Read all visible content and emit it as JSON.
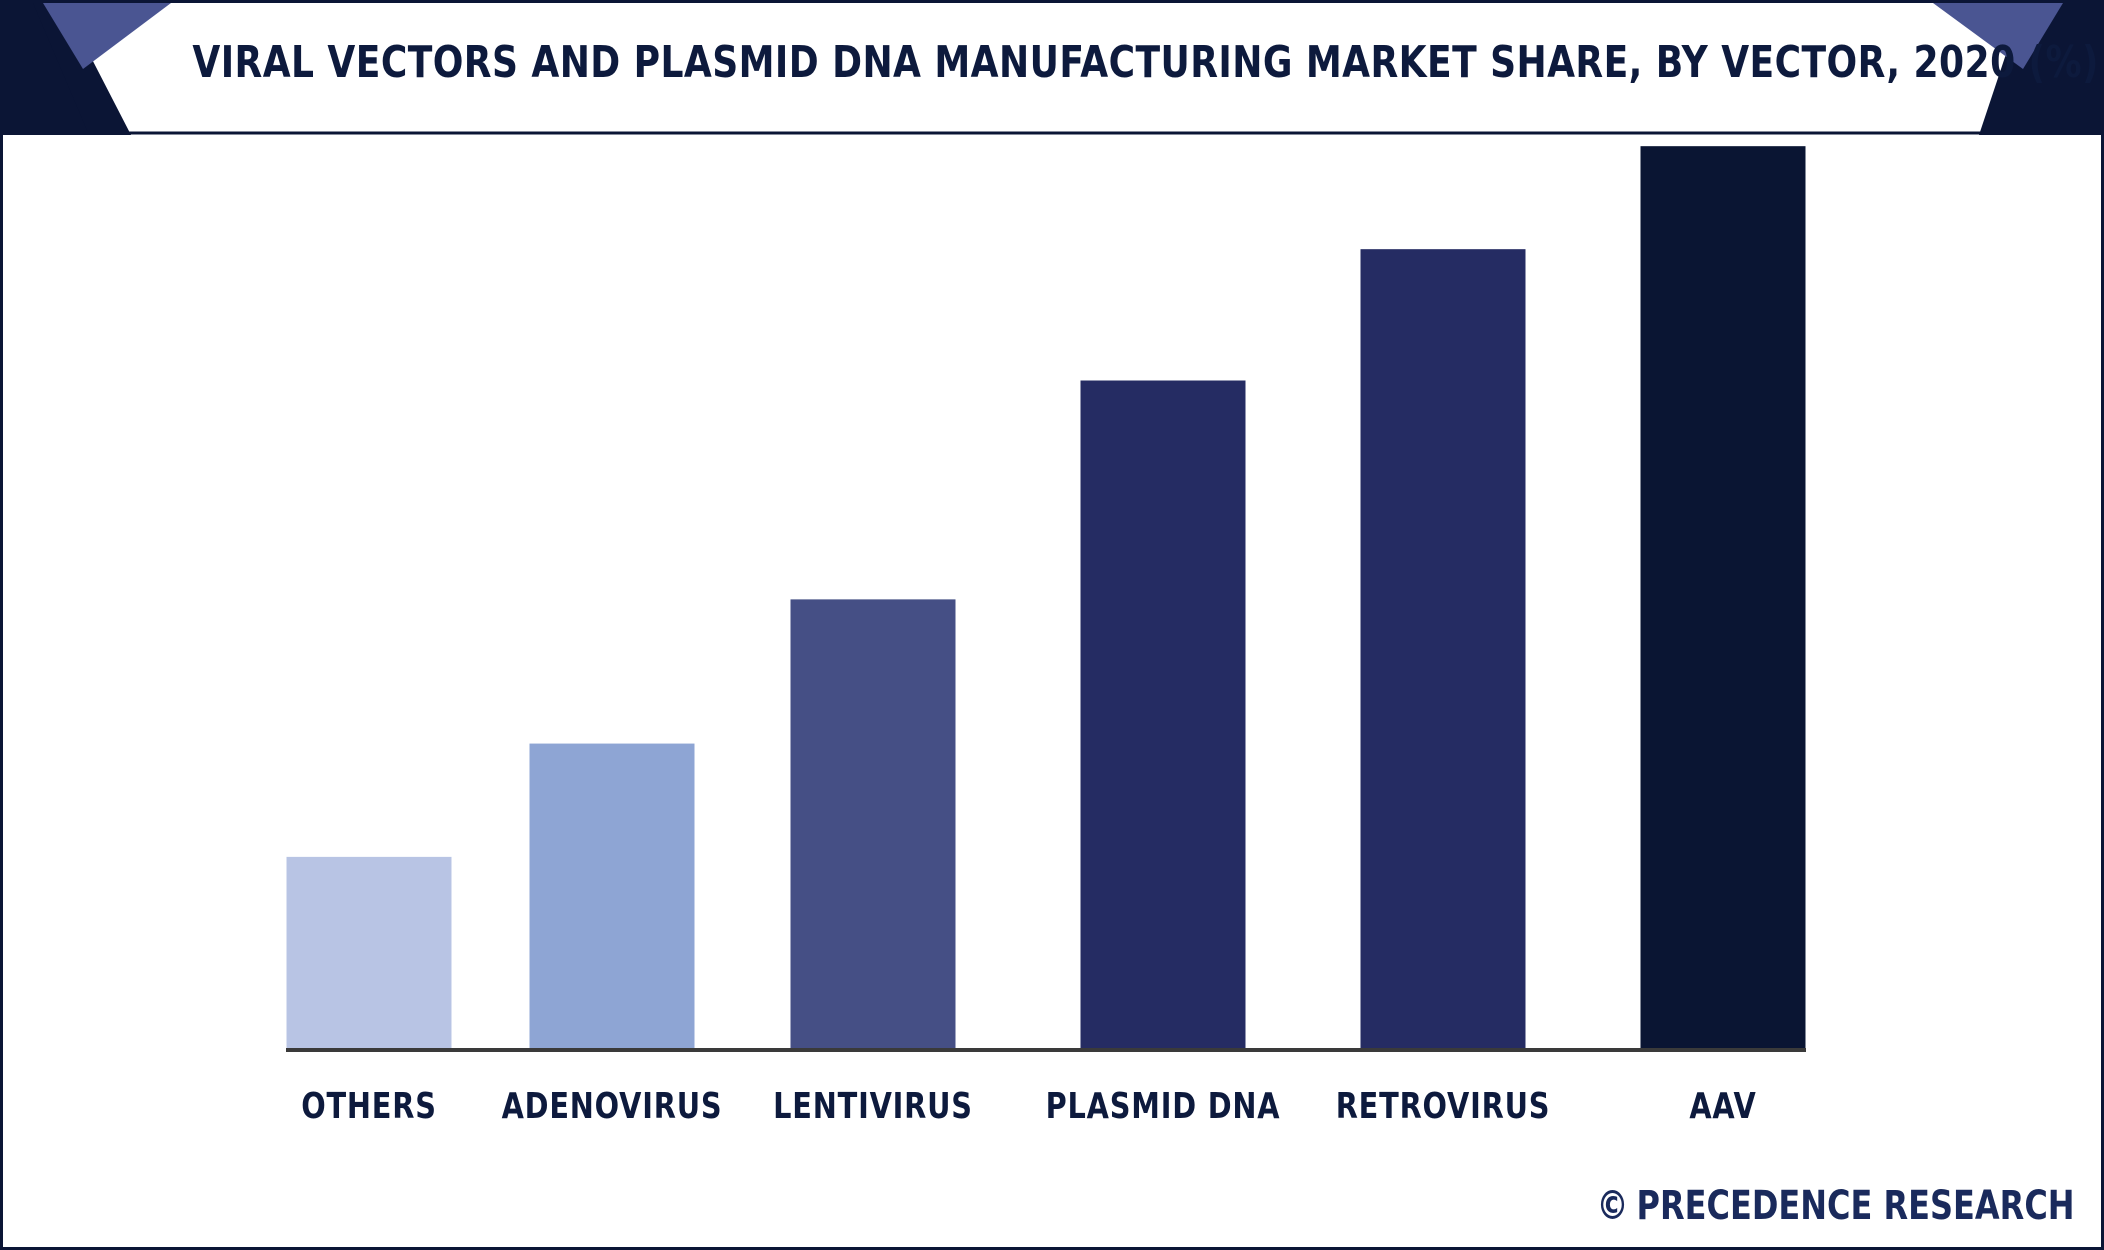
{
  "header": {
    "title": "VIRAL VECTORS AND PLASMID DNA MANUFACTURING MARKET SHARE, BY VECTOR, 2020 (%)"
  },
  "footer": {
    "copyright_symbol": "©",
    "brand": "PRECEDENCE RESEARCH"
  },
  "colors": {
    "frame": "#0b1535",
    "header_dark": "#0b1535",
    "header_accent": "#4a5592",
    "baseline": "#3a3a3a"
  },
  "chart_data": {
    "type": "bar",
    "title": "VIRAL VECTORS AND PLASMID DNA MANUFACTURING MARKET SHARE, BY VECTOR, 2020 (%)",
    "categories": [
      "OTHERS",
      "ADENOVIRUS",
      "LENTIVIRUS",
      "PLASMID DNA",
      "RETROVIRUS",
      "AAV"
    ],
    "values": [
      7.5,
      11.9,
      17.5,
      26.0,
      31.1,
      35.1
    ],
    "bar_colors": [
      "#b8c4e4",
      "#8ea5d4",
      "#454f85",
      "#252c63",
      "#252c63",
      "#0a1533"
    ],
    "ylim": [
      0,
      36
    ],
    "grid": false,
    "legend": "none",
    "xlabel": "",
    "ylabel": ""
  }
}
